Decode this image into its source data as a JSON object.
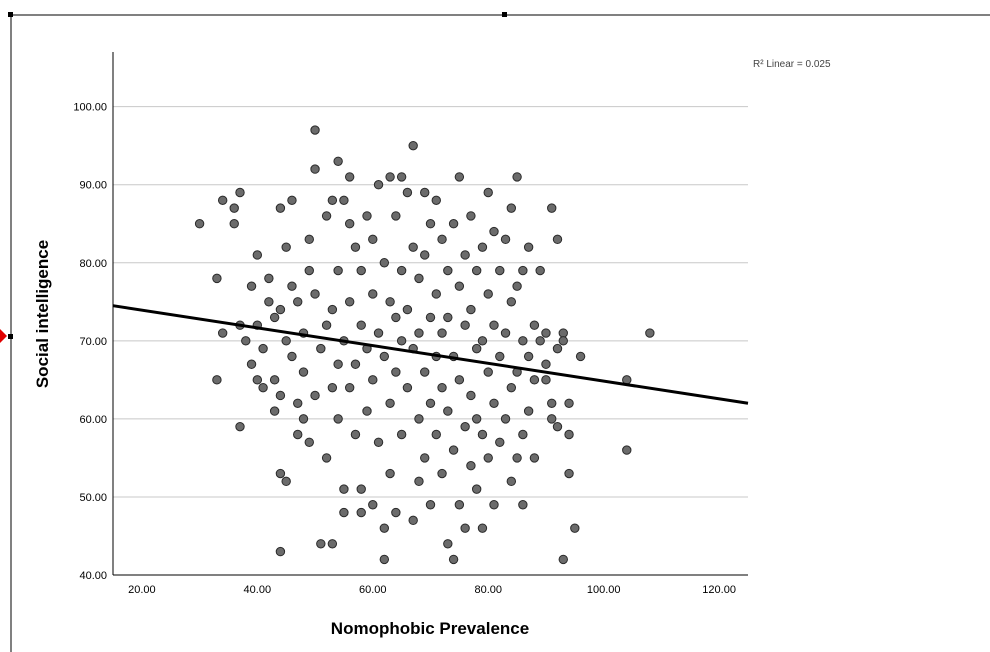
{
  "chart_data": {
    "type": "scatter",
    "xlabel": "Nomophobic Prevalence",
    "ylabel": "Social intelligence",
    "xlim": [
      15,
      125
    ],
    "ylim": [
      40,
      107
    ],
    "xticks": [
      "20.00",
      "40.00",
      "60.00",
      "80.00",
      "100.00",
      "120.00"
    ],
    "yticks": [
      "40.00",
      "50.00",
      "60.00",
      "70.00",
      "80.00",
      "90.00",
      "100.00"
    ],
    "annotation": "R² Linear = 0.025",
    "grid": "horizontal",
    "fit_line": {
      "x": [
        15,
        125
      ],
      "y": [
        74.5,
        62.0
      ]
    },
    "marker_color": "#6b6b6b",
    "line_color": "#000000",
    "points": [
      [
        30,
        85
      ],
      [
        33,
        78
      ],
      [
        33,
        65
      ],
      [
        34,
        71
      ],
      [
        34,
        88
      ],
      [
        36,
        85
      ],
      [
        36,
        87
      ],
      [
        37,
        89
      ],
      [
        37,
        59
      ],
      [
        37,
        72
      ],
      [
        38,
        70
      ],
      [
        39,
        67
      ],
      [
        39,
        77
      ],
      [
        40,
        81
      ],
      [
        40,
        65
      ],
      [
        40,
        72
      ],
      [
        41,
        64
      ],
      [
        41,
        69
      ],
      [
        42,
        78
      ],
      [
        42,
        75
      ],
      [
        43,
        73
      ],
      [
        43,
        61
      ],
      [
        43,
        65
      ],
      [
        44,
        87
      ],
      [
        44,
        74
      ],
      [
        44,
        63
      ],
      [
        44,
        43
      ],
      [
        44,
        53
      ],
      [
        45,
        52
      ],
      [
        45,
        82
      ],
      [
        45,
        70
      ],
      [
        46,
        77
      ],
      [
        46,
        88
      ],
      [
        46,
        68
      ],
      [
        47,
        62
      ],
      [
        47,
        58
      ],
      [
        47,
        75
      ],
      [
        48,
        71
      ],
      [
        48,
        60
      ],
      [
        48,
        66
      ],
      [
        49,
        83
      ],
      [
        49,
        79
      ],
      [
        49,
        57
      ],
      [
        50,
        97
      ],
      [
        50,
        92
      ],
      [
        50,
        76
      ],
      [
        50,
        63
      ],
      [
        51,
        44
      ],
      [
        51,
        69
      ],
      [
        52,
        86
      ],
      [
        52,
        72
      ],
      [
        52,
        55
      ],
      [
        53,
        88
      ],
      [
        53,
        74
      ],
      [
        53,
        44
      ],
      [
        53,
        64
      ],
      [
        54,
        93
      ],
      [
        54,
        79
      ],
      [
        54,
        67
      ],
      [
        54,
        60
      ],
      [
        55,
        88
      ],
      [
        55,
        70
      ],
      [
        55,
        51
      ],
      [
        55,
        48
      ],
      [
        56,
        91
      ],
      [
        56,
        85
      ],
      [
        56,
        75
      ],
      [
        56,
        64
      ],
      [
        57,
        82
      ],
      [
        57,
        58
      ],
      [
        57,
        67
      ],
      [
        58,
        79
      ],
      [
        58,
        72
      ],
      [
        58,
        51
      ],
      [
        58,
        48
      ],
      [
        59,
        86
      ],
      [
        59,
        69
      ],
      [
        59,
        61
      ],
      [
        60,
        83
      ],
      [
        60,
        76
      ],
      [
        60,
        65
      ],
      [
        60,
        49
      ],
      [
        61,
        90
      ],
      [
        61,
        71
      ],
      [
        61,
        57
      ],
      [
        62,
        80
      ],
      [
        62,
        68
      ],
      [
        62,
        42
      ],
      [
        62,
        46
      ],
      [
        63,
        91
      ],
      [
        63,
        75
      ],
      [
        63,
        62
      ],
      [
        63,
        53
      ],
      [
        64,
        86
      ],
      [
        64,
        73
      ],
      [
        64,
        66
      ],
      [
        64,
        48
      ],
      [
        65,
        91
      ],
      [
        65,
        79
      ],
      [
        65,
        70
      ],
      [
        65,
        58
      ],
      [
        66,
        89
      ],
      [
        66,
        74
      ],
      [
        66,
        64
      ],
      [
        67,
        95
      ],
      [
        67,
        82
      ],
      [
        67,
        69
      ],
      [
        67,
        47
      ],
      [
        68,
        78
      ],
      [
        68,
        71
      ],
      [
        68,
        60
      ],
      [
        68,
        52
      ],
      [
        69,
        89
      ],
      [
        69,
        81
      ],
      [
        69,
        66
      ],
      [
        69,
        55
      ],
      [
        70,
        85
      ],
      [
        70,
        73
      ],
      [
        70,
        62
      ],
      [
        70,
        49
      ],
      [
        71,
        88
      ],
      [
        71,
        76
      ],
      [
        71,
        68
      ],
      [
        71,
        58
      ],
      [
        72,
        83
      ],
      [
        72,
        71
      ],
      [
        72,
        64
      ],
      [
        72,
        53
      ],
      [
        73,
        79
      ],
      [
        73,
        73
      ],
      [
        73,
        61
      ],
      [
        73,
        44
      ],
      [
        74,
        85
      ],
      [
        74,
        68
      ],
      [
        74,
        56
      ],
      [
        74,
        42
      ],
      [
        75,
        91
      ],
      [
        75,
        77
      ],
      [
        75,
        65
      ],
      [
        75,
        49
      ],
      [
        76,
        81
      ],
      [
        76,
        72
      ],
      [
        76,
        59
      ],
      [
        76,
        46
      ],
      [
        77,
        86
      ],
      [
        77,
        74
      ],
      [
        77,
        63
      ],
      [
        77,
        54
      ],
      [
        78,
        79
      ],
      [
        78,
        69
      ],
      [
        78,
        60
      ],
      [
        78,
        51
      ],
      [
        79,
        82
      ],
      [
        79,
        70
      ],
      [
        79,
        58
      ],
      [
        79,
        46
      ],
      [
        80,
        89
      ],
      [
        80,
        76
      ],
      [
        80,
        66
      ],
      [
        80,
        55
      ],
      [
        81,
        84
      ],
      [
        81,
        72
      ],
      [
        81,
        62
      ],
      [
        81,
        49
      ],
      [
        82,
        79
      ],
      [
        82,
        68
      ],
      [
        82,
        57
      ],
      [
        83,
        83
      ],
      [
        83,
        71
      ],
      [
        83,
        60
      ],
      [
        84,
        87
      ],
      [
        84,
        75
      ],
      [
        84,
        64
      ],
      [
        84,
        52
      ],
      [
        85,
        91
      ],
      [
        85,
        77
      ],
      [
        85,
        66
      ],
      [
        85,
        55
      ],
      [
        86,
        79
      ],
      [
        86,
        70
      ],
      [
        86,
        58
      ],
      [
        86,
        49
      ],
      [
        87,
        82
      ],
      [
        87,
        68
      ],
      [
        87,
        61
      ],
      [
        88,
        72
      ],
      [
        88,
        65
      ],
      [
        88,
        55
      ],
      [
        89,
        79
      ],
      [
        89,
        70
      ],
      [
        90,
        71
      ],
      [
        90,
        67
      ],
      [
        91,
        87
      ],
      [
        91,
        62
      ],
      [
        91,
        60
      ],
      [
        92,
        83
      ],
      [
        92,
        69
      ],
      [
        92,
        59
      ],
      [
        93,
        71
      ],
      [
        93,
        42
      ],
      [
        94,
        58
      ],
      [
        94,
        53
      ],
      [
        95,
        46
      ],
      [
        96,
        68
      ],
      [
        104,
        65
      ],
      [
        104,
        56
      ],
      [
        108,
        71
      ],
      [
        94,
        62
      ],
      [
        93,
        70
      ],
      [
        90,
        65
      ]
    ]
  }
}
